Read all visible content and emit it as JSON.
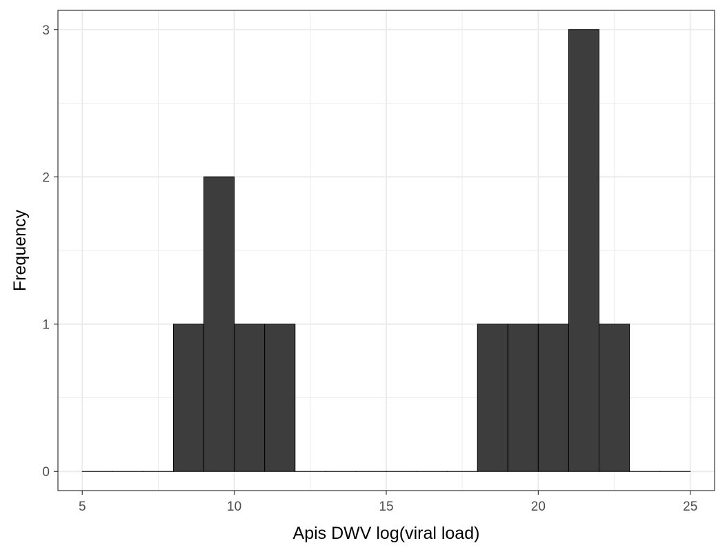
{
  "chart_data": {
    "type": "bar",
    "subtype": "histogram",
    "title": "",
    "xlabel": "Apis DWV log(viral load)",
    "ylabel": "Frequency",
    "xlim": [
      4.2,
      25.8
    ],
    "ylim": [
      -0.13,
      3.13
    ],
    "x_ticks": [
      5,
      10,
      15,
      20,
      25
    ],
    "y_ticks": [
      0,
      1,
      2,
      3
    ],
    "x_tick_labels": [
      "5",
      "10",
      "15",
      "20",
      "25"
    ],
    "y_tick_labels": [
      "0",
      "1",
      "2",
      "3"
    ],
    "bin_width": 1,
    "bins": [
      {
        "start": 5,
        "end": 6,
        "count": 0
      },
      {
        "start": 6,
        "end": 7,
        "count": 0
      },
      {
        "start": 7,
        "end": 8,
        "count": 0
      },
      {
        "start": 8,
        "end": 9,
        "count": 1
      },
      {
        "start": 9,
        "end": 10,
        "count": 2
      },
      {
        "start": 10,
        "end": 11,
        "count": 1
      },
      {
        "start": 11,
        "end": 12,
        "count": 1
      },
      {
        "start": 12,
        "end": 13,
        "count": 0
      },
      {
        "start": 13,
        "end": 14,
        "count": 0
      },
      {
        "start": 14,
        "end": 15,
        "count": 0
      },
      {
        "start": 15,
        "end": 16,
        "count": 0
      },
      {
        "start": 16,
        "end": 17,
        "count": 0
      },
      {
        "start": 17,
        "end": 18,
        "count": 0
      },
      {
        "start": 18,
        "end": 19,
        "count": 1
      },
      {
        "start": 19,
        "end": 20,
        "count": 1
      },
      {
        "start": 20,
        "end": 21,
        "count": 1
      },
      {
        "start": 21,
        "end": 22,
        "count": 3
      },
      {
        "start": 22,
        "end": 23,
        "count": 1
      },
      {
        "start": 23,
        "end": 24,
        "count": 0
      },
      {
        "start": 24,
        "end": 25,
        "count": 0
      }
    ],
    "grid": true,
    "legend": "none",
    "colors": {
      "bar_fill": "#3d3d3d",
      "bar_stroke": "#000000",
      "grid": "#ebebeb",
      "panel_border": "#333333",
      "tick_text": "#4d4d4d"
    }
  }
}
